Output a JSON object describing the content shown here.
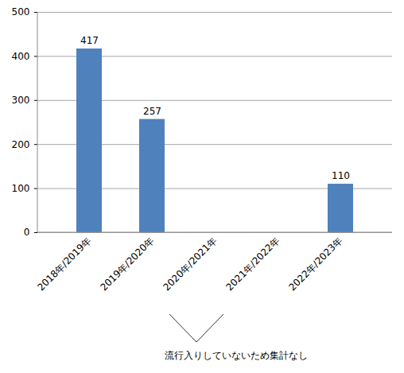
{
  "chart_data": {
    "type": "bar",
    "categories": [
      "2018年/2019年",
      "2019年/2020年",
      "2020年/2021年",
      "2021年/2022年",
      "2022年/2023年"
    ],
    "values": [
      417,
      257,
      null,
      null,
      110
    ],
    "color": "#4f81bd",
    "ylim": [
      0,
      500
    ],
    "yticks": [
      0,
      100,
      200,
      300,
      400,
      500
    ],
    "grid": true,
    "data_labels": true,
    "annotation": "流行入りしていないため集計なし"
  }
}
